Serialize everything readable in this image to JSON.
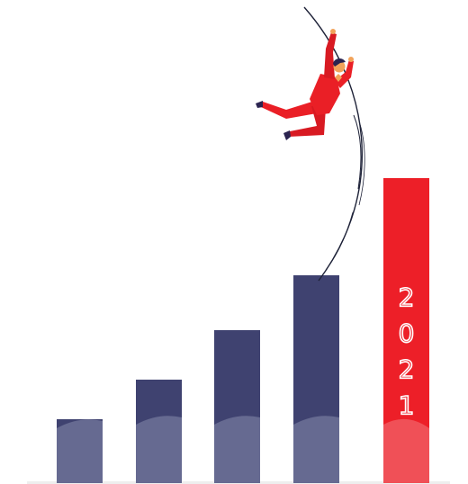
{
  "illustration": {
    "year_label": "2021",
    "year_digits": [
      "2",
      "0",
      "2",
      "1"
    ],
    "bars": [
      {
        "name": "bar-1",
        "color": "#3f4270",
        "level": 0.21
      },
      {
        "name": "bar-2",
        "color": "#3f4270",
        "level": 0.34
      },
      {
        "name": "bar-3",
        "color": "#3f4270",
        "level": 0.5
      },
      {
        "name": "bar-4",
        "color": "#3f4270",
        "level": 0.68
      },
      {
        "name": "bar-2021",
        "color": "#ed1f28",
        "level": 1.0,
        "highlight": true
      }
    ],
    "colors": {
      "bar": "#3f4270",
      "bar_light": "#666a91",
      "highlight": "#ed1f28",
      "highlight_light": "#f05057",
      "figure_suit": "#ea1f26",
      "skin": "#f2a35a",
      "hair": "#2b2450",
      "pole": "#1e2238"
    }
  }
}
